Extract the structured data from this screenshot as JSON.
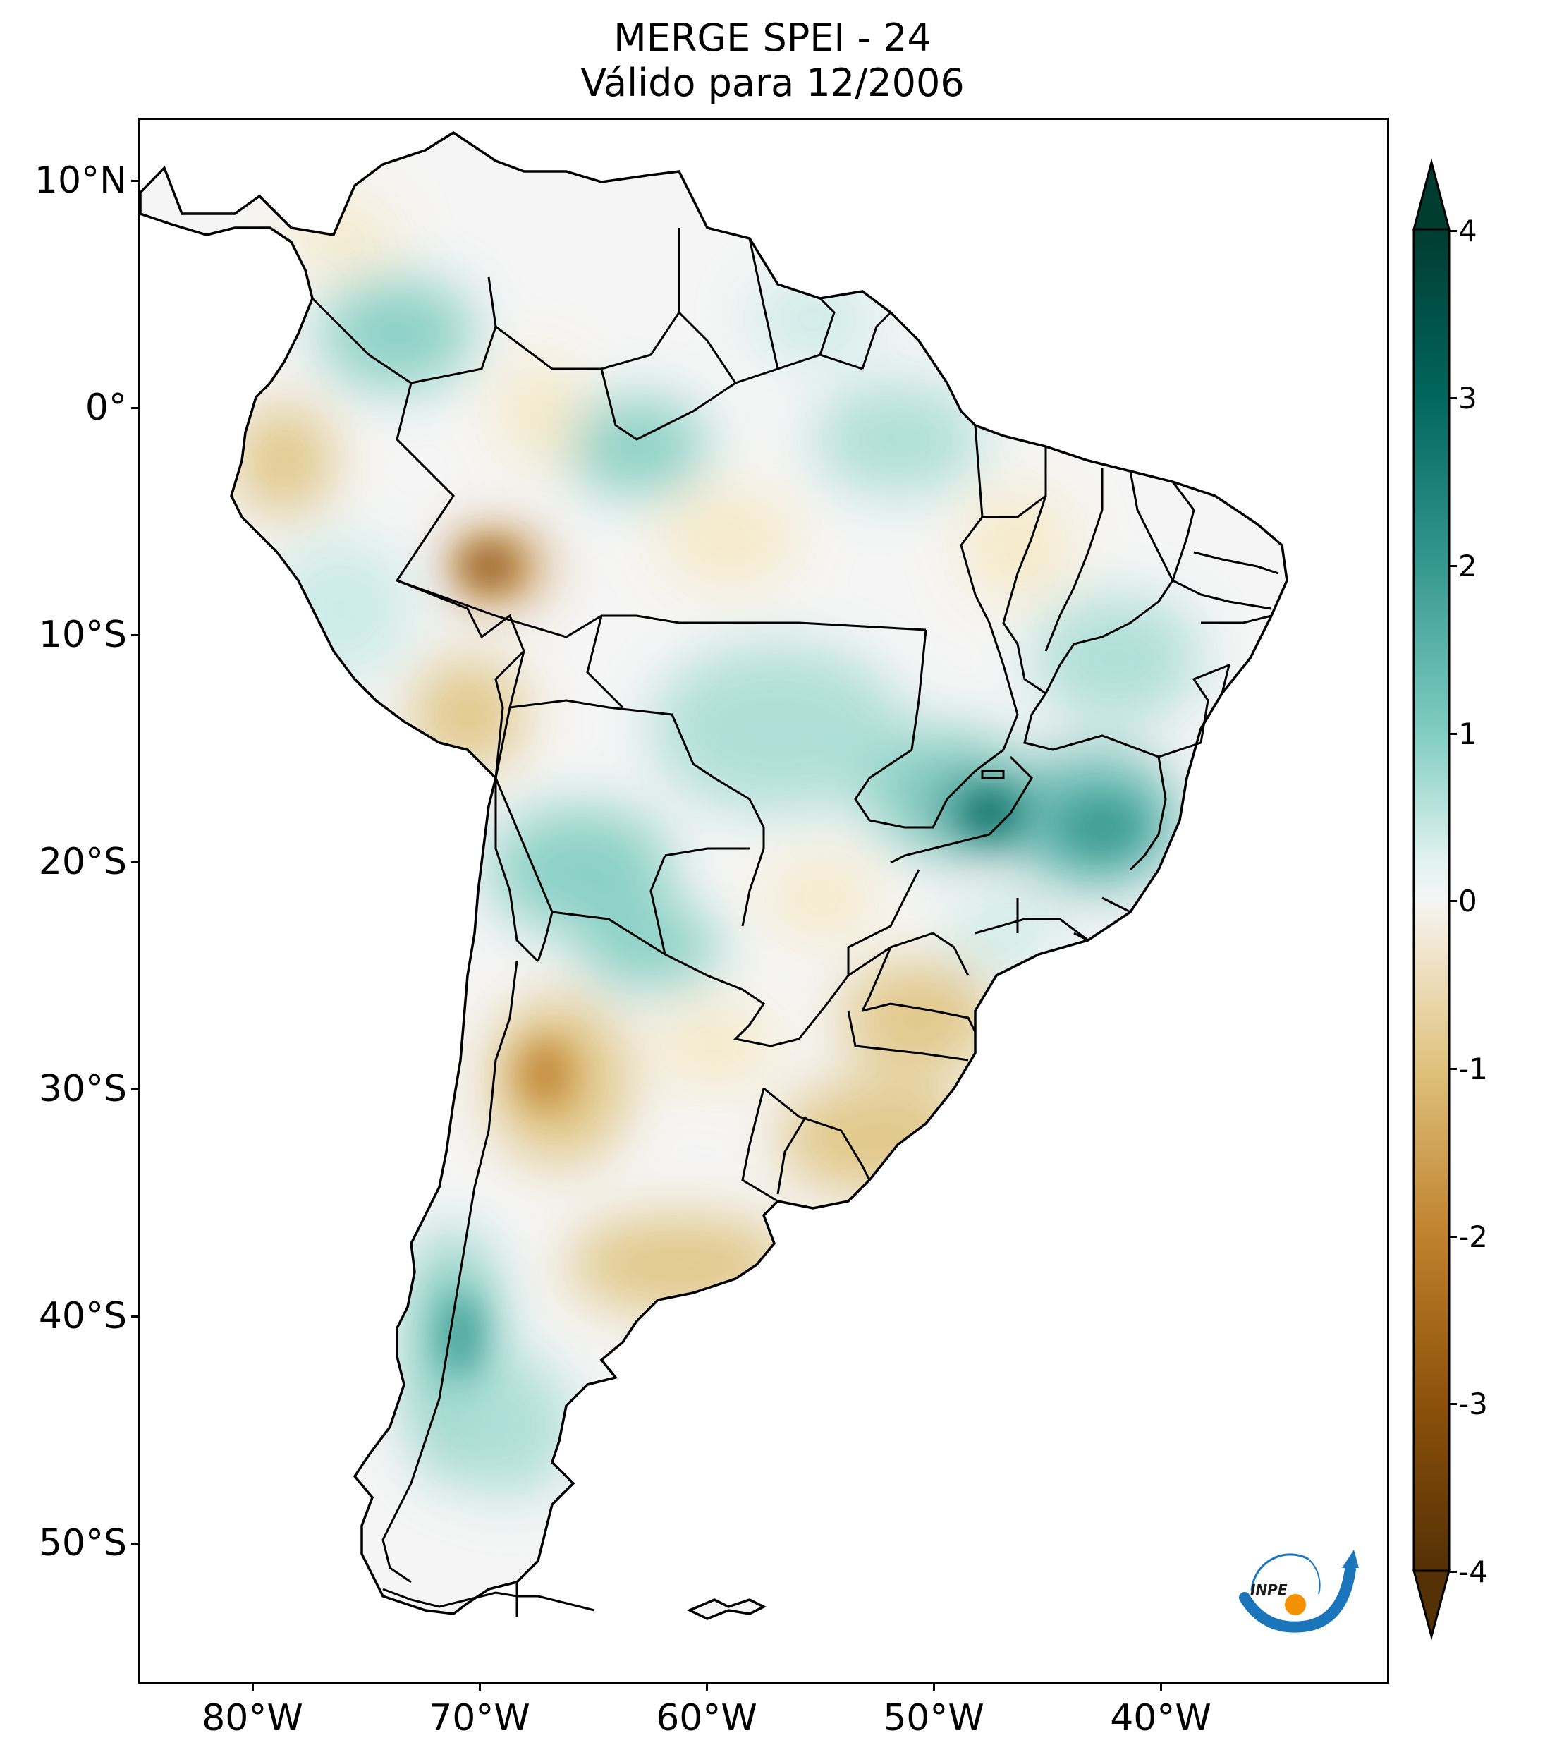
{
  "title": {
    "line1": "MERGE   SPEI - 24",
    "line2": "Válido para 12/2006"
  },
  "map": {
    "projection": "PlateCarree",
    "lon_range": [
      -85,
      -30
    ],
    "lat_range": [
      -56,
      13
    ],
    "lat_ticks": [
      "10°N",
      "0°",
      "10°S",
      "20°S",
      "30°S",
      "40°S",
      "50°S"
    ],
    "lon_ticks": [
      "80°W",
      "70°W",
      "60°W",
      "50°W",
      "40°W"
    ],
    "variable": "SPEI-24",
    "features": [
      "coastline",
      "country borders",
      "Brazilian state borders"
    ]
  },
  "colorbar": {
    "colormap": "BrBG",
    "ticks": [
      "4",
      "3",
      "2",
      "1",
      "0",
      "-1",
      "-2",
      "-3",
      "-4"
    ],
    "range": [
      -4,
      4
    ],
    "extend": "both",
    "colors": {
      "min": "#543005",
      "mid_dry": "#dfc27d",
      "zero": "#f5f5f5",
      "mid_wet": "#80cdc1",
      "max": "#003c30"
    }
  },
  "logo": {
    "text": "INPE",
    "colors": {
      "arrow": "#1a75bb",
      "dot": "#f39200"
    }
  }
}
